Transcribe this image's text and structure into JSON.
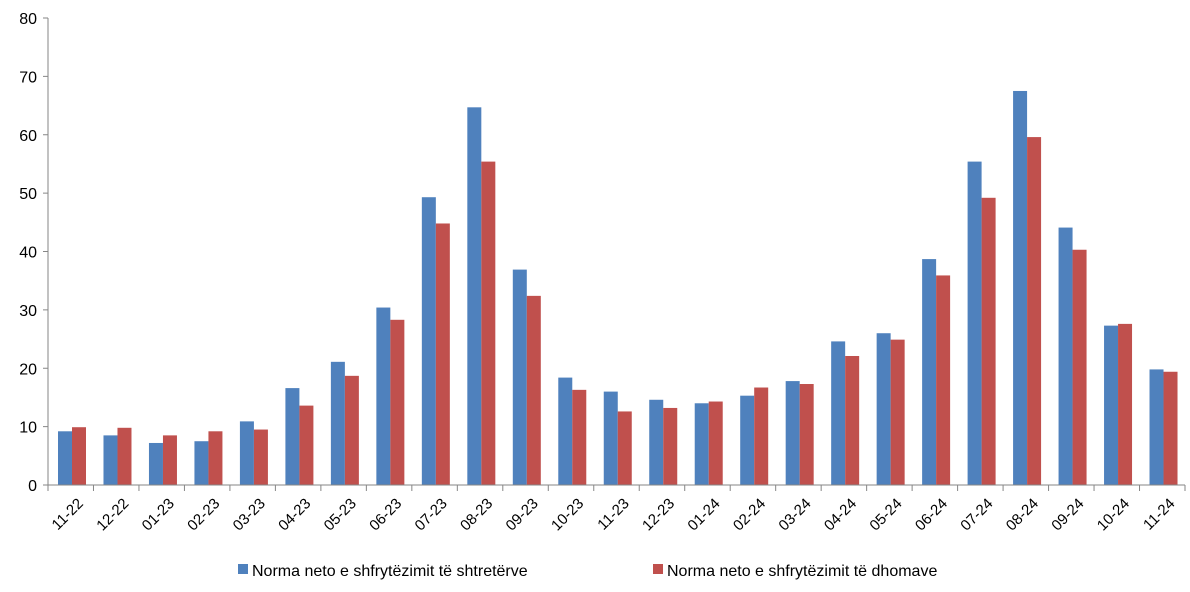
{
  "chart_data": {
    "type": "bar",
    "title": "",
    "xlabel": "",
    "ylabel": "",
    "ylim": [
      0,
      80
    ],
    "yticks": [
      0,
      10,
      20,
      30,
      40,
      50,
      60,
      70,
      80
    ],
    "grid": false,
    "legend_position": "bottom",
    "categories": [
      "11-22",
      "12-22",
      "01-23",
      "02-23",
      "03-23",
      "04-23",
      "05-23",
      "06-23",
      "07-23",
      "08-23",
      "09-23",
      "10-23",
      "11-23",
      "12-23",
      "01-24",
      "02-24",
      "03-24",
      "04-24",
      "05-24",
      "06-24",
      "07-24",
      "08-24",
      "09-24",
      "10-24",
      "11-24"
    ],
    "series": [
      {
        "name": "Norma neto e shfrytëzimit të shtretërve",
        "color": "#4f81bd",
        "values": [
          9.2,
          8.5,
          7.2,
          7.5,
          10.9,
          16.6,
          21.1,
          30.4,
          49.3,
          64.7,
          36.9,
          18.4,
          16.0,
          14.6,
          14.0,
          15.3,
          17.8,
          24.6,
          26.0,
          38.7,
          55.4,
          67.5,
          44.1,
          27.3,
          19.8
        ]
      },
      {
        "name": "Norma neto e shfrytëzimit të dhomave",
        "color": "#c0504d",
        "values": [
          9.9,
          9.8,
          8.5,
          9.2,
          9.5,
          13.6,
          18.7,
          28.3,
          44.8,
          55.4,
          32.4,
          16.3,
          12.6,
          13.2,
          14.3,
          16.7,
          17.3,
          22.1,
          24.9,
          35.9,
          49.2,
          59.6,
          40.3,
          27.6,
          19.4
        ]
      }
    ]
  }
}
